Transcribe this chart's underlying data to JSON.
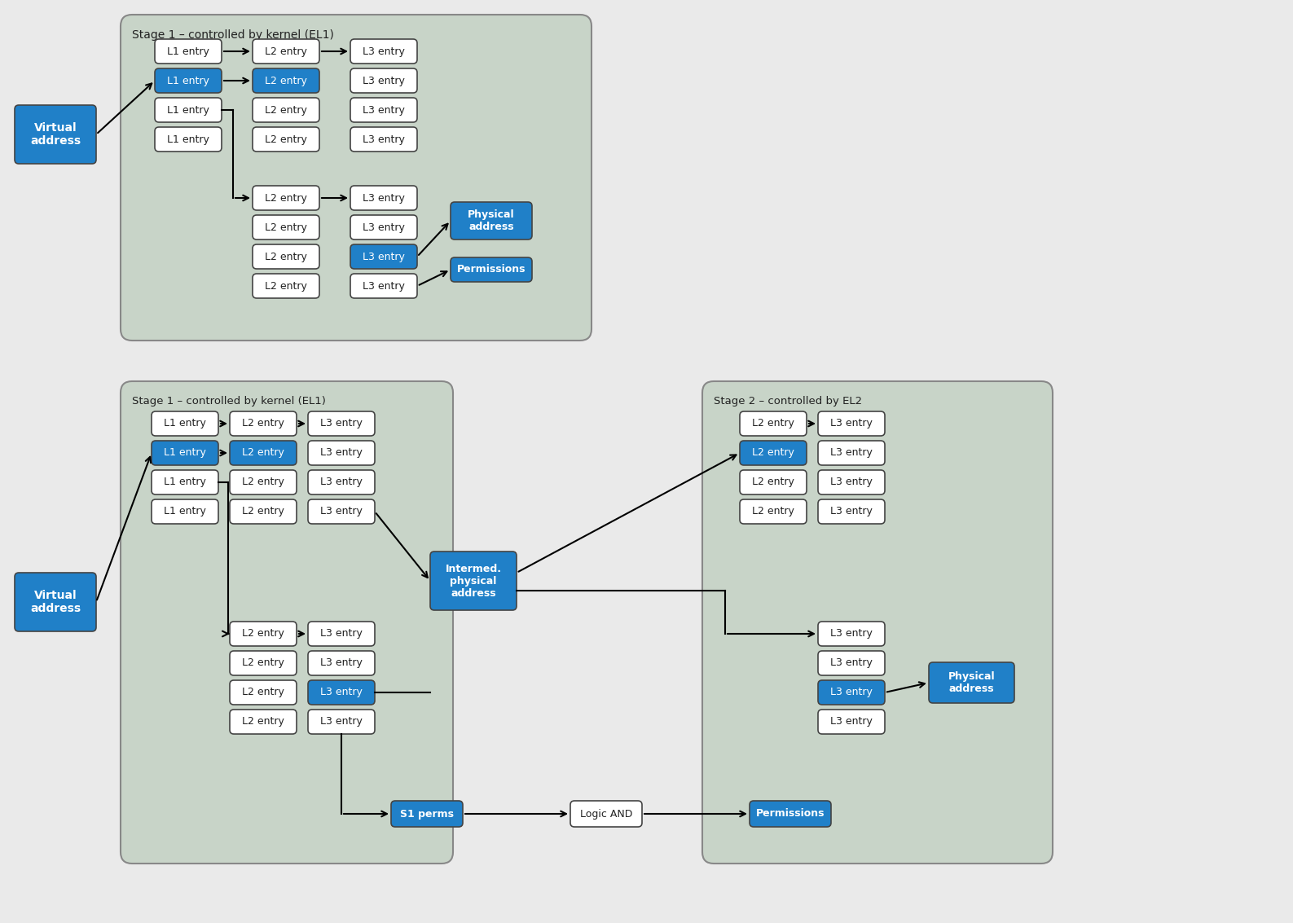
{
  "bg_color": "#eaeaea",
  "blue_fill": "#2080c8",
  "white_fill": "#ffffff",
  "dark_text": "#222222",
  "white_text": "#ffffff",
  "box_edge": "#444444",
  "stage_bg": "#c8d4c8",
  "stage_border": "#888888",
  "title1": "Stage 1 – controlled by kernel (EL1)",
  "title2": "Stage 2 – controlled by EL2",
  "virtual_address": "Virtual\naddress",
  "intermed_physical": "Intermed.\nphysical\naddress",
  "physical_address": "Physical\naddress",
  "permissions": "Permissions",
  "s1_perms": "S1 perms",
  "logic_and": "Logic AND",
  "l1_entry": "L1 entry",
  "l2_entry": "L2 entry",
  "l3_entry": "L3 entry"
}
